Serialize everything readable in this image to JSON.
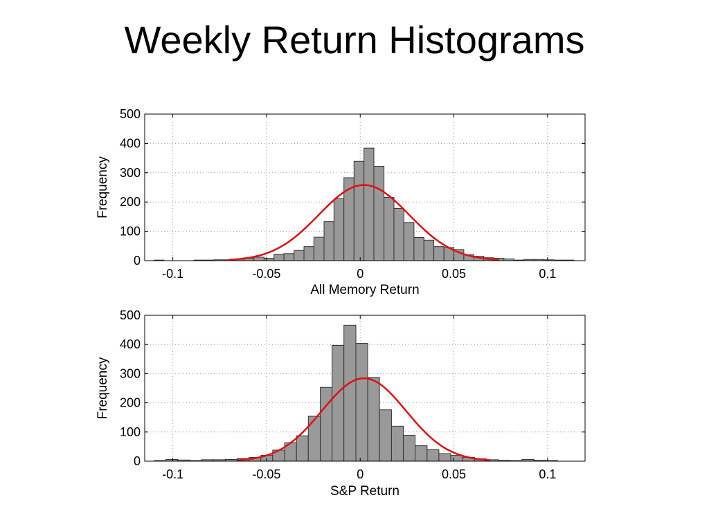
{
  "page": {
    "title": "Weekly Return Histograms"
  },
  "colors": {
    "bar_fill": "#999999",
    "bar_stroke": "#333333",
    "fit_line": "#e01010",
    "grid": "#9a9a9a",
    "axis": "#000000"
  },
  "chart_data": [
    {
      "type": "bar",
      "subtype": "histogram_with_normal_fit",
      "xlabel": "All Memory Return",
      "ylabel": "Frequency",
      "xlim": [
        -0.115,
        0.12
      ],
      "ylim": [
        0,
        500
      ],
      "xticks": [
        -0.1,
        -0.05,
        0,
        0.05,
        0.1
      ],
      "xtick_labels": [
        "-0.1",
        "-0.05",
        "0",
        "0.05",
        "0.1"
      ],
      "yticks": [
        0,
        100,
        200,
        300,
        400,
        500
      ],
      "ytick_labels": [
        "0",
        "100",
        "200",
        "300",
        "400",
        "500"
      ],
      "grid": true,
      "bin_edges": [
        -0.11,
        -0.1047,
        -0.0993,
        -0.094,
        -0.0887,
        -0.0833,
        -0.078,
        -0.0727,
        -0.0673,
        -0.062,
        -0.0567,
        -0.0513,
        -0.046,
        -0.0407,
        -0.0353,
        -0.03,
        -0.0247,
        -0.0193,
        -0.014,
        -0.0087,
        -0.0033,
        0.002,
        0.0073,
        0.0127,
        0.018,
        0.0233,
        0.0287,
        0.034,
        0.0393,
        0.0447,
        0.05,
        0.0553,
        0.0607,
        0.066,
        0.0713,
        0.0767,
        0.082,
        0.0873,
        0.0927,
        0.098,
        0.1033,
        0.1087,
        0.114
      ],
      "counts": [
        2,
        0,
        0,
        0,
        2,
        2,
        3,
        3,
        5,
        8,
        12,
        8,
        22,
        24,
        35,
        48,
        80,
        133,
        211,
        283,
        339,
        384,
        322,
        216,
        178,
        130,
        79,
        70,
        48,
        45,
        38,
        20,
        15,
        10,
        8,
        6,
        2,
        4,
        4,
        3,
        2,
        2
      ],
      "normal_fit": {
        "mean": 0.002,
        "std": 0.0241,
        "peak": 258
      }
    },
    {
      "type": "bar",
      "subtype": "histogram_with_normal_fit",
      "xlabel": "S&P Return",
      "ylabel": "Frequency",
      "xlim": [
        -0.115,
        0.12
      ],
      "ylim": [
        0,
        500
      ],
      "xticks": [
        -0.1,
        -0.05,
        0,
        0.05,
        0.1
      ],
      "xtick_labels": [
        "-0.1",
        "-0.05",
        "0",
        "0.05",
        "0.1"
      ],
      "yticks": [
        0,
        100,
        200,
        300,
        400,
        500
      ],
      "ytick_labels": [
        "0",
        "100",
        "200",
        "300",
        "400",
        "500"
      ],
      "grid": true,
      "bin_edges": [
        -0.11,
        -0.1037,
        -0.0973,
        -0.091,
        -0.0847,
        -0.0783,
        -0.072,
        -0.0657,
        -0.0593,
        -0.053,
        -0.0467,
        -0.0403,
        -0.034,
        -0.0277,
        -0.0213,
        -0.015,
        -0.0087,
        -0.0023,
        0.004,
        0.0103,
        0.0167,
        0.023,
        0.0293,
        0.0357,
        0.042,
        0.0483,
        0.0547,
        0.061,
        0.0673,
        0.0737,
        0.08,
        0.0863,
        0.0927,
        0.099,
        0.1053
      ],
      "counts": [
        2,
        6,
        4,
        2,
        5,
        5,
        6,
        9,
        13,
        20,
        38,
        63,
        87,
        154,
        253,
        397,
        466,
        404,
        287,
        176,
        120,
        89,
        53,
        40,
        26,
        20,
        13,
        8,
        5,
        3,
        2,
        6,
        3,
        2
      ],
      "normal_fit": {
        "mean": 0.002,
        "std": 0.0225,
        "peak": 284
      }
    }
  ]
}
